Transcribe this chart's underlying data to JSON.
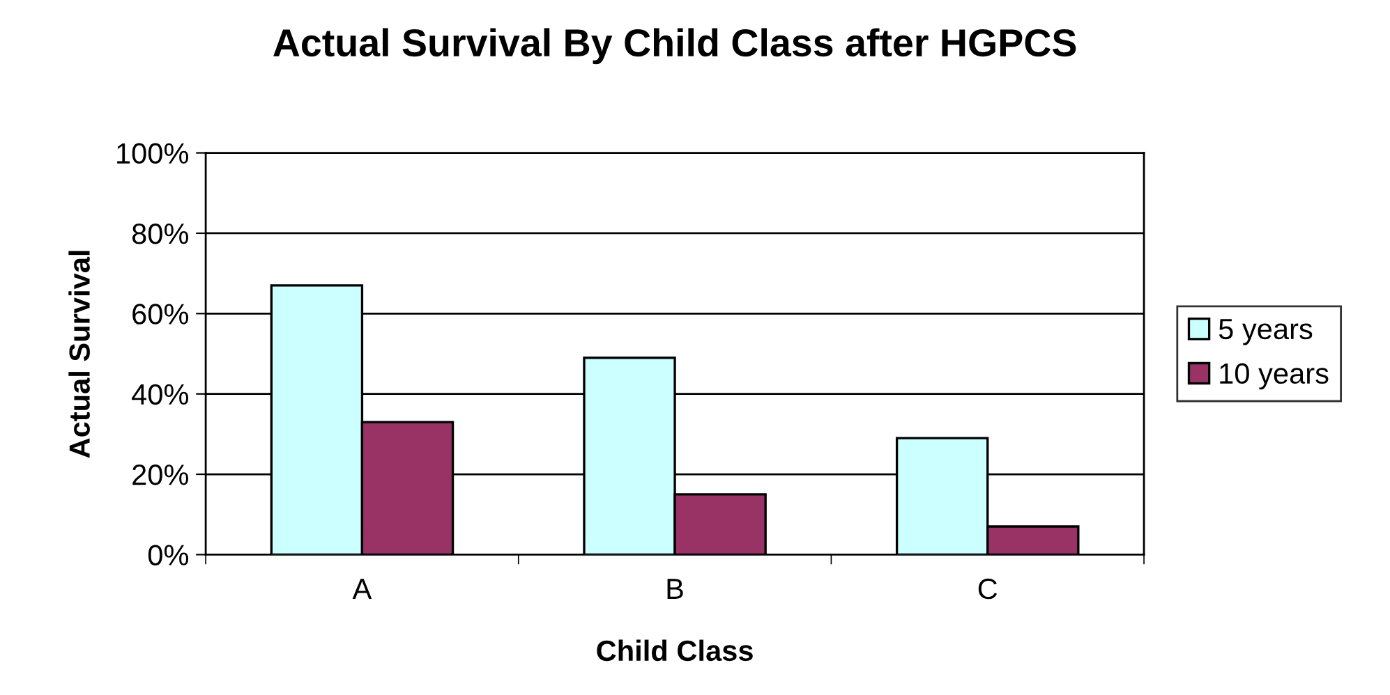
{
  "chart_data": {
    "type": "bar",
    "title": "Actual Survival By Child Class after HGPCS",
    "xlabel": "Child Class",
    "ylabel": "Actual Survival",
    "categories": [
      "A",
      "B",
      "C"
    ],
    "series": [
      {
        "name": "5 years",
        "color": "#ccffff",
        "values": [
          67,
          49,
          29
        ]
      },
      {
        "name": "10 years",
        "color": "#993366",
        "values": [
          33,
          15,
          7
        ]
      }
    ],
    "ylim": [
      0,
      100
    ],
    "yticks": [
      {
        "value": 0,
        "label": "0%"
      },
      {
        "value": 20,
        "label": "20%"
      },
      {
        "value": 40,
        "label": "40%"
      },
      {
        "value": 60,
        "label": "60%"
      },
      {
        "value": 80,
        "label": "80%"
      },
      {
        "value": 100,
        "label": "100%"
      }
    ],
    "grid": "y",
    "legend": "right"
  }
}
